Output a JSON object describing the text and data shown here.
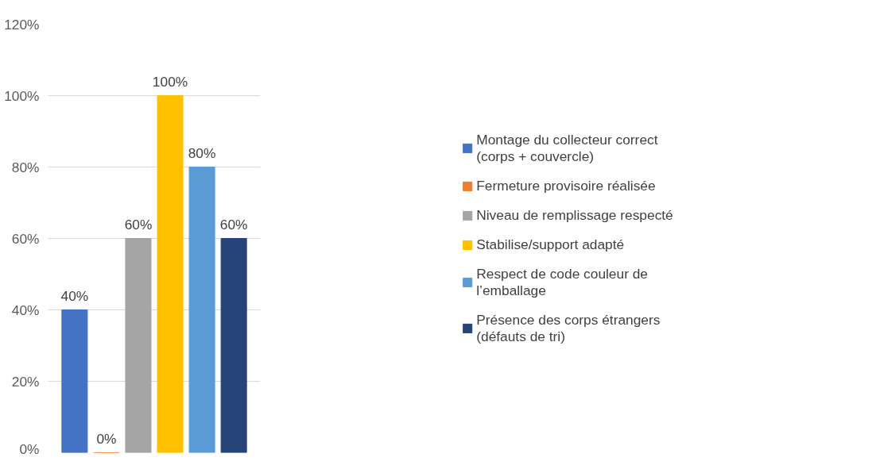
{
  "chart_data": {
    "type": "bar",
    "categories": [
      null
    ],
    "series": [
      {
        "name": "Montage du collecteur correct (corps + couvercle)",
        "color": "#4472c4",
        "values": [
          40
        ],
        "value_labels": [
          "40%"
        ]
      },
      {
        "name": "Fermeture provisoire réalisée",
        "color": "#ed7d31",
        "values": [
          0
        ],
        "value_labels": [
          "0%"
        ]
      },
      {
        "name": "Niveau de remplissage respecté",
        "color": "#a5a5a5",
        "values": [
          60
        ],
        "value_labels": [
          "60%"
        ]
      },
      {
        "name": "Stabilise/support adapté",
        "color": "#ffc000",
        "values": [
          100
        ],
        "value_labels": [
          "100%"
        ]
      },
      {
        "name": "Respect de code couleur de l’emballage",
        "color": "#5b9bd5",
        "values": [
          80
        ],
        "value_labels": [
          "80%"
        ]
      },
      {
        "name": "Présence des corps étrangers (défauts de tri)",
        "color": "#264478",
        "values": [
          60
        ],
        "value_labels": [
          "60%"
        ]
      }
    ],
    "ylim": [
      0,
      120
    ],
    "yticks": [
      {
        "value": 0,
        "label": "0%"
      },
      {
        "value": 20,
        "label": "20%"
      },
      {
        "value": 40,
        "label": "40%"
      },
      {
        "value": 60,
        "label": "60%"
      },
      {
        "value": 80,
        "label": "80%"
      },
      {
        "value": 100,
        "label": "100%"
      },
      {
        "value": 120,
        "label": "120%"
      }
    ],
    "grid": "y",
    "legend": "right"
  }
}
